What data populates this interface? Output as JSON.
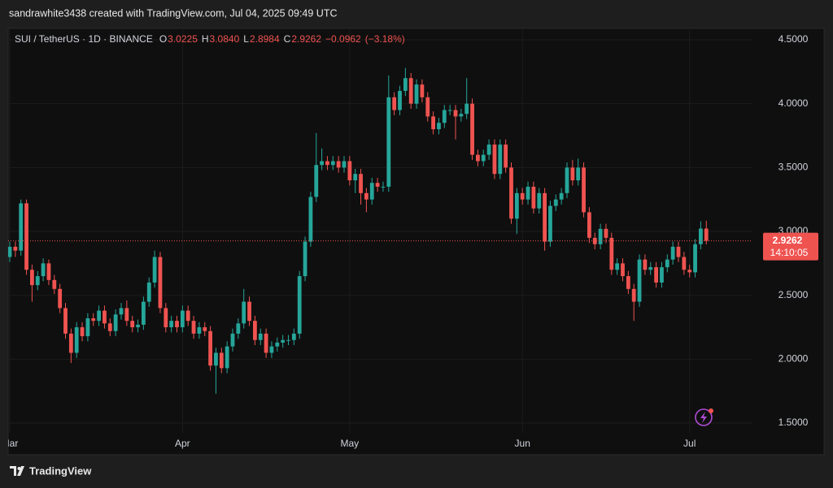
{
  "header": {
    "text": "sandrawhite3438 created with TradingView.com, Jul 04, 2025 09:49 UTC"
  },
  "footer": {
    "brand": "TradingView"
  },
  "chart_data": {
    "type": "candlestick",
    "symbol": "SUI / TetherUS · 1D · BINANCE",
    "legend_values": [
      {
        "label": "O",
        "value": "3.0225"
      },
      {
        "label": "H",
        "value": "3.0840"
      },
      {
        "label": "L",
        "value": "2.8984"
      },
      {
        "label": "C",
        "value": "2.9262"
      }
    ],
    "change": "−0.0962",
    "change_pct": "(−3.18%)",
    "last_price_label": "2.9262",
    "countdown": "14:10:05",
    "up_color": "#26a69a",
    "down_color": "#ef5350",
    "grid": true,
    "categories": [
      "Mar",
      null,
      null,
      null,
      null,
      null,
      null,
      null,
      null,
      null,
      null,
      null,
      null,
      null,
      null,
      null,
      null,
      null,
      null,
      null,
      null,
      null,
      null,
      null,
      null,
      null,
      null,
      null,
      null,
      null,
      null,
      "Apr",
      null,
      null,
      null,
      null,
      null,
      null,
      null,
      null,
      null,
      null,
      null,
      null,
      null,
      null,
      null,
      null,
      null,
      null,
      null,
      null,
      null,
      null,
      null,
      null,
      null,
      null,
      null,
      null,
      null,
      "May",
      null,
      null,
      null,
      null,
      null,
      null,
      null,
      null,
      null,
      null,
      null,
      null,
      null,
      null,
      null,
      null,
      null,
      null,
      null,
      null,
      null,
      null,
      null,
      null,
      null,
      null,
      null,
      null,
      null,
      null,
      "Jun",
      null,
      null,
      null,
      null,
      null,
      null,
      null,
      null,
      null,
      null,
      null,
      null,
      null,
      null,
      null,
      null,
      null,
      null,
      null,
      null,
      null,
      null,
      null,
      null,
      null,
      null,
      null,
      null,
      null,
      "Jul",
      null,
      null,
      null
    ],
    "open": [
      2.8,
      2.88,
      2.85,
      3.22,
      2.7,
      2.58,
      2.65,
      2.75,
      2.62,
      2.55,
      2.4,
      2.2,
      2.05,
      2.25,
      2.18,
      2.32,
      2.3,
      2.38,
      2.28,
      2.22,
      2.35,
      2.4,
      2.3,
      2.25,
      2.27,
      2.45,
      2.6,
      2.8,
      2.4,
      2.25,
      2.3,
      2.25,
      2.38,
      2.3,
      2.2,
      2.25,
      2.22,
      1.95,
      2.05,
      1.93,
      2.1,
      2.2,
      2.28,
      2.45,
      2.3,
      2.15,
      2.2,
      2.05,
      2.1,
      2.13,
      2.15,
      2.15,
      2.2,
      2.65,
      2.92,
      3.27,
      3.52,
      3.55,
      3.52,
      3.55,
      3.5,
      3.55,
      3.4,
      3.45,
      3.3,
      3.25,
      3.38,
      3.35,
      3.35,
      4.05,
      3.95,
      4.1,
      4.2,
      4.0,
      4.15,
      4.05,
      3.9,
      3.8,
      3.85,
      3.95,
      3.95,
      3.9,
      3.92,
      4.0,
      3.6,
      3.55,
      3.6,
      3.68,
      3.45,
      3.68,
      3.5,
      3.1,
      3.3,
      3.25,
      3.35,
      3.18,
      3.3,
      2.92,
      3.2,
      3.25,
      3.3,
      3.5,
      3.4,
      3.5,
      3.15,
      2.95,
      2.9,
      3.02,
      2.95,
      2.7,
      2.75,
      2.65,
      2.55,
      2.45,
      2.78,
      2.7,
      2.72,
      2.6,
      2.72,
      2.78,
      2.88,
      2.8,
      2.7,
      2.68,
      2.9,
      3.0225
    ],
    "high": [
      2.92,
      2.92,
      3.25,
      3.25,
      2.74,
      2.69,
      2.79,
      2.78,
      2.66,
      2.59,
      2.44,
      2.24,
      2.29,
      2.29,
      2.36,
      2.36,
      2.42,
      2.42,
      2.32,
      2.39,
      2.44,
      2.46,
      2.34,
      2.31,
      2.49,
      2.64,
      2.85,
      2.84,
      2.44,
      2.34,
      2.34,
      2.42,
      2.42,
      2.34,
      2.29,
      2.29,
      2.26,
      2.09,
      2.09,
      2.14,
      2.24,
      2.32,
      2.55,
      2.49,
      2.34,
      2.24,
      2.24,
      2.14,
      2.17,
      2.19,
      2.19,
      2.24,
      2.69,
      2.96,
      3.31,
      3.77,
      3.65,
      3.59,
      3.59,
      3.59,
      3.59,
      3.59,
      3.49,
      3.49,
      3.34,
      3.42,
      3.42,
      3.39,
      4.22,
      4.09,
      4.14,
      4.28,
      4.24,
      4.19,
      4.19,
      4.09,
      3.94,
      3.89,
      3.99,
      3.99,
      3.99,
      3.96,
      4.2,
      4.04,
      3.64,
      3.64,
      3.72,
      3.72,
      3.72,
      3.72,
      3.54,
      3.34,
      3.34,
      3.39,
      3.39,
      3.34,
      3.34,
      3.24,
      3.29,
      3.34,
      3.54,
      3.56,
      3.57,
      3.54,
      3.19,
      2.99,
      3.06,
      3.06,
      2.99,
      2.79,
      2.79,
      2.69,
      2.59,
      2.82,
      2.82,
      2.76,
      2.76,
      2.76,
      2.82,
      2.92,
      2.92,
      2.84,
      2.74,
      2.94,
      3.08,
      3.084
    ],
    "low": [
      2.76,
      2.8,
      2.81,
      2.66,
      2.45,
      2.54,
      2.61,
      2.58,
      2.51,
      2.36,
      2.16,
      1.97,
      2.01,
      2.14,
      2.14,
      2.26,
      2.26,
      2.24,
      2.18,
      2.18,
      2.31,
      2.26,
      2.21,
      2.21,
      2.23,
      2.41,
      2.56,
      2.36,
      2.21,
      2.21,
      2.21,
      2.21,
      2.26,
      2.16,
      2.16,
      2.18,
      1.91,
      1.73,
      1.89,
      1.89,
      2.06,
      2.16,
      2.24,
      2.26,
      2.11,
      2.11,
      2.01,
      2.01,
      2.06,
      2.09,
      2.11,
      2.11,
      2.16,
      2.61,
      2.88,
      3.23,
      3.48,
      3.48,
      3.48,
      3.46,
      3.46,
      3.36,
      3.3,
      3.21,
      3.15,
      3.21,
      3.31,
      3.31,
      3.31,
      3.91,
      3.91,
      4.06,
      3.96,
      3.96,
      4.01,
      3.86,
      3.76,
      3.76,
      3.81,
      3.91,
      3.72,
      3.86,
      3.88,
      3.56,
      3.51,
      3.51,
      3.56,
      3.41,
      3.41,
      3.46,
      3.06,
      2.98,
      3.21,
      3.21,
      3.14,
      3.14,
      2.85,
      2.88,
      3.16,
      3.21,
      3.26,
      3.36,
      3.36,
      3.11,
      2.91,
      2.86,
      2.86,
      2.91,
      2.66,
      2.66,
      2.61,
      2.51,
      2.3,
      2.41,
      2.66,
      2.66,
      2.56,
      2.56,
      2.68,
      2.74,
      2.76,
      2.66,
      2.64,
      2.64,
      2.86,
      2.8984
    ],
    "close": [
      2.88,
      2.85,
      3.22,
      2.7,
      2.58,
      2.65,
      2.75,
      2.62,
      2.55,
      2.4,
      2.2,
      2.05,
      2.25,
      2.18,
      2.32,
      2.3,
      2.38,
      2.28,
      2.22,
      2.35,
      2.4,
      2.3,
      2.25,
      2.27,
      2.45,
      2.6,
      2.8,
      2.4,
      2.25,
      2.3,
      2.25,
      2.38,
      2.3,
      2.2,
      2.25,
      2.22,
      1.95,
      2.05,
      1.93,
      2.1,
      2.2,
      2.28,
      2.45,
      2.3,
      2.15,
      2.2,
      2.05,
      2.1,
      2.13,
      2.15,
      2.15,
      2.2,
      2.65,
      2.92,
      3.27,
      3.52,
      3.55,
      3.52,
      3.55,
      3.5,
      3.55,
      3.4,
      3.45,
      3.3,
      3.25,
      3.38,
      3.35,
      3.35,
      4.05,
      3.95,
      4.1,
      4.2,
      4.0,
      4.15,
      4.05,
      3.9,
      3.8,
      3.85,
      3.95,
      3.95,
      3.9,
      3.92,
      4.0,
      3.6,
      3.55,
      3.6,
      3.68,
      3.45,
      3.68,
      3.5,
      3.1,
      3.3,
      3.25,
      3.35,
      3.18,
      3.3,
      2.92,
      3.2,
      3.25,
      3.3,
      3.5,
      3.4,
      3.5,
      3.15,
      2.95,
      2.9,
      3.02,
      2.95,
      2.7,
      2.75,
      2.65,
      2.55,
      2.45,
      2.78,
      2.7,
      2.72,
      2.6,
      2.72,
      2.78,
      2.88,
      2.8,
      2.7,
      2.68,
      2.9,
      3.0225,
      2.9262
    ],
    "ylim": [
      1.424,
      4.589
    ],
    "yticks": [
      {
        "value": 1.5,
        "label": "1.5000"
      },
      {
        "value": 2,
        "label": "2.0000"
      },
      {
        "value": 2.5,
        "label": "2.5000"
      },
      {
        "value": 3,
        "label": "3.0000"
      },
      {
        "value": 3.5,
        "label": "3.5000"
      },
      {
        "value": 4,
        "label": "4.0000"
      },
      {
        "value": 4.5,
        "label": "4.5000"
      }
    ]
  }
}
